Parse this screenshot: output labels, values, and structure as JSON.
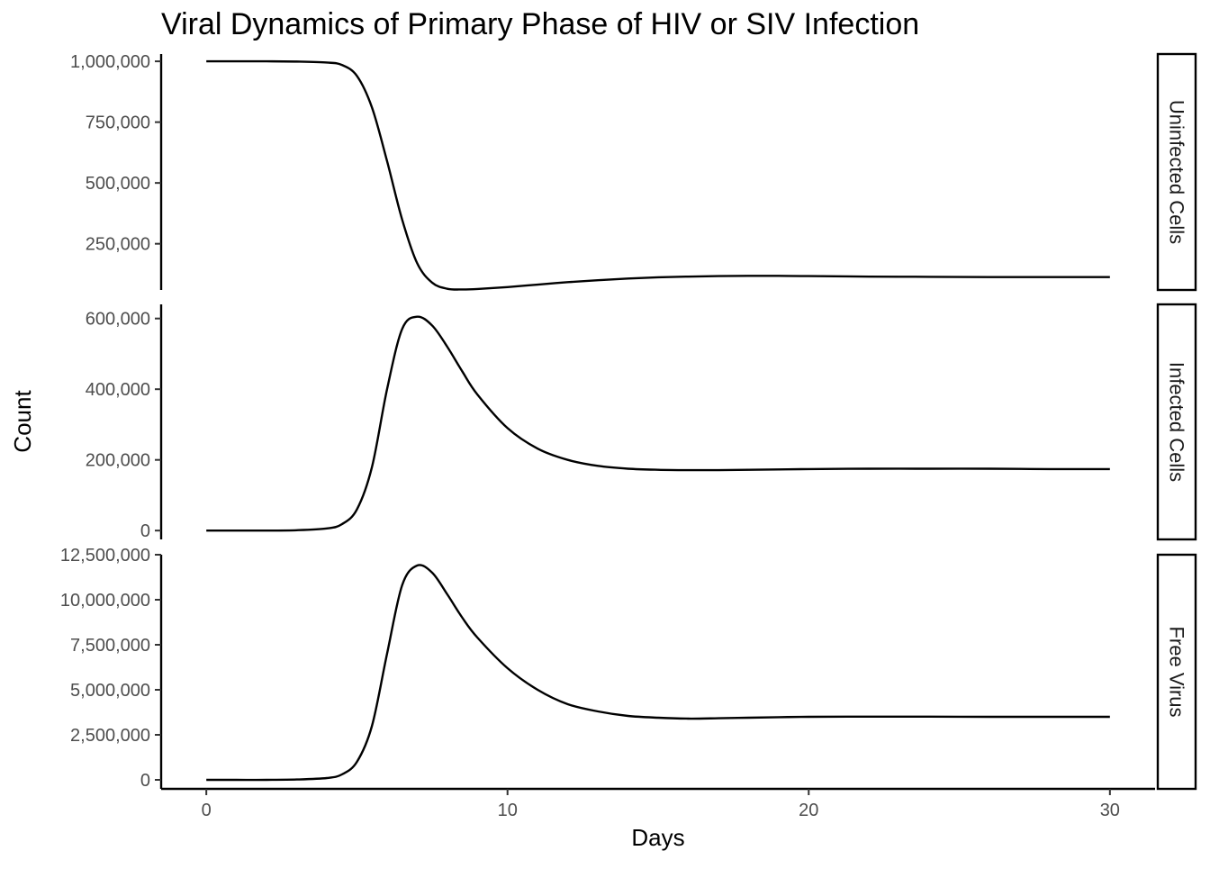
{
  "chart_data": {
    "type": "line",
    "title": "Viral Dynamics of Primary Phase of HIV or SIV Infection",
    "xlabel": "Days",
    "ylabel": "Count",
    "xlim": [
      -1.5,
      31.5
    ],
    "x_ticks": [
      0,
      10,
      20,
      30
    ],
    "x_tick_labels": [
      "0",
      "10",
      "20",
      "30"
    ],
    "grid": false,
    "legend": "none",
    "facets": [
      {
        "key": "uninfected",
        "strip_label": "Uninfected Cells",
        "ylim": [
          60000,
          1030000
        ],
        "y_ticks": [
          250000,
          500000,
          750000,
          1000000
        ],
        "y_tick_labels": [
          "250,000",
          "500,000",
          "750,000",
          "1,000,000"
        ],
        "x": [
          0,
          1,
          2,
          3,
          4,
          4.5,
          5,
          5.5,
          6,
          6.5,
          7,
          7.5,
          8,
          8.5,
          9,
          10,
          11,
          12,
          13,
          14,
          15,
          16,
          17,
          18,
          19,
          20,
          22,
          24,
          26,
          28,
          30
        ],
        "y": [
          1000000,
          1000000,
          1000000,
          999000,
          995000,
          985000,
          940000,
          810000,
          590000,
          350000,
          170000,
          90000,
          65000,
          62000,
          64000,
          72000,
          82000,
          92000,
          100000,
          107000,
          112000,
          115000,
          117000,
          118000,
          118000,
          117000,
          115000,
          114000,
          113000,
          113000,
          113000
        ]
      },
      {
        "key": "infected",
        "strip_label": "Infected Cells",
        "ylim": [
          -25000,
          640000
        ],
        "y_ticks": [
          0,
          200000,
          400000,
          600000
        ],
        "y_tick_labels": [
          "0",
          "200,000",
          "400,000",
          "600,000"
        ],
        "x": [
          0,
          1,
          2,
          3,
          4,
          4.5,
          5,
          5.5,
          6,
          6.5,
          7,
          7.5,
          8,
          8.5,
          9,
          10,
          11,
          12,
          13,
          14,
          15,
          16,
          17,
          18,
          19,
          20,
          22,
          24,
          26,
          28,
          30
        ],
        "y": [
          0,
          0,
          0,
          1000,
          6000,
          18000,
          60000,
          180000,
          400000,
          570000,
          605000,
          580000,
          520000,
          450000,
          385000,
          290000,
          232000,
          200000,
          183000,
          175000,
          172000,
          171000,
          171000,
          172000,
          173000,
          174000,
          175000,
          175000,
          175000,
          174000,
          174000
        ]
      },
      {
        "key": "virus",
        "strip_label": "Free Virus",
        "ylim": [
          -500000,
          12500000
        ],
        "y_ticks": [
          0,
          2500000,
          5000000,
          7500000,
          10000000,
          12500000
        ],
        "y_tick_labels": [
          "0",
          "2,500,000",
          "5,000,000",
          "7,500,000",
          "10,000,000",
          "12,500,000"
        ],
        "x": [
          0,
          1,
          2,
          3,
          4,
          4.5,
          5,
          5.5,
          6,
          6.5,
          7,
          7.5,
          8,
          8.5,
          9,
          10,
          11,
          12,
          13,
          14,
          15,
          16,
          17,
          18,
          19,
          20,
          22,
          24,
          26,
          28,
          30
        ],
        "y": [
          0,
          0,
          0,
          20000,
          100000,
          300000,
          1000000,
          3000000,
          7000000,
          10800000,
          11900000,
          11500000,
          10300000,
          9000000,
          7900000,
          6200000,
          5000000,
          4200000,
          3800000,
          3550000,
          3450000,
          3400000,
          3420000,
          3450000,
          3480000,
          3500000,
          3510000,
          3510000,
          3500000,
          3500000,
          3500000
        ]
      }
    ]
  }
}
